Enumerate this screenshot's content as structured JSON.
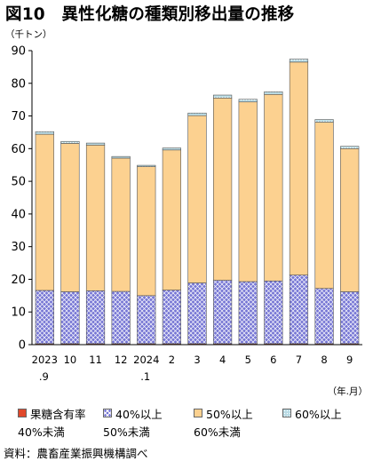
{
  "title": "図10　異性化糖の種類別移出量の推移",
  "y_unit_label": "（千トン）",
  "x_unit_label": "（年.月）",
  "source": "資料：農畜産業振興機構調べ",
  "chart_data": {
    "type": "bar",
    "stacked": true,
    "categories": [
      {
        "line1": "2023",
        "line2": ".9"
      },
      {
        "line1": "10",
        "line2": ""
      },
      {
        "line1": "11",
        "line2": ""
      },
      {
        "line1": "12",
        "line2": ""
      },
      {
        "line1": "2024",
        "line2": ".1"
      },
      {
        "line1": "2",
        "line2": ""
      },
      {
        "line1": "3",
        "line2": ""
      },
      {
        "line1": "4",
        "line2": ""
      },
      {
        "line1": "5",
        "line2": ""
      },
      {
        "line1": "6",
        "line2": ""
      },
      {
        "line1": "7",
        "line2": ""
      },
      {
        "line1": "8",
        "line2": ""
      },
      {
        "line1": "9",
        "line2": ""
      }
    ],
    "ylim": [
      0,
      90
    ],
    "yticks": [
      "0",
      "10",
      "20",
      "30",
      "40",
      "50",
      "60",
      "70",
      "80",
      "90"
    ],
    "grid": false,
    "legend_position": "bottom",
    "series": [
      {
        "name_line1": "果糖含有率",
        "name_line2": "40%未満",
        "color": "#e0482b",
        "pattern": "solid",
        "values": [
          0.3,
          0.3,
          0.3,
          0.3,
          0.3,
          0.3,
          0.3,
          0.3,
          0.3,
          0.3,
          0.3,
          0.3,
          0.3
        ]
      },
      {
        "name_line1": "40%以上",
        "name_line2": "50%未満",
        "color": "#6f6fd0",
        "pattern": "crosshatch",
        "values": [
          16.3,
          15.9,
          16.2,
          16.0,
          14.7,
          16.4,
          18.6,
          19.4,
          19.0,
          19.2,
          21.0,
          16.9,
          15.9
        ]
      },
      {
        "name_line1": "50%以上",
        "name_line2": "60%未満",
        "color": "#fcd190",
        "pattern": "solid",
        "values": [
          47.8,
          45.4,
          44.6,
          40.8,
          39.5,
          42.9,
          51.2,
          55.8,
          55.0,
          57.1,
          65.2,
          50.9,
          43.8
        ]
      },
      {
        "name_line1": "60%以上",
        "name_line2": "",
        "color": "#b4d7e0",
        "pattern": "dots",
        "values": [
          0.8,
          0.6,
          0.6,
          0.5,
          0.4,
          0.6,
          0.8,
          0.9,
          0.8,
          0.8,
          0.9,
          0.8,
          0.7
        ]
      }
    ]
  }
}
